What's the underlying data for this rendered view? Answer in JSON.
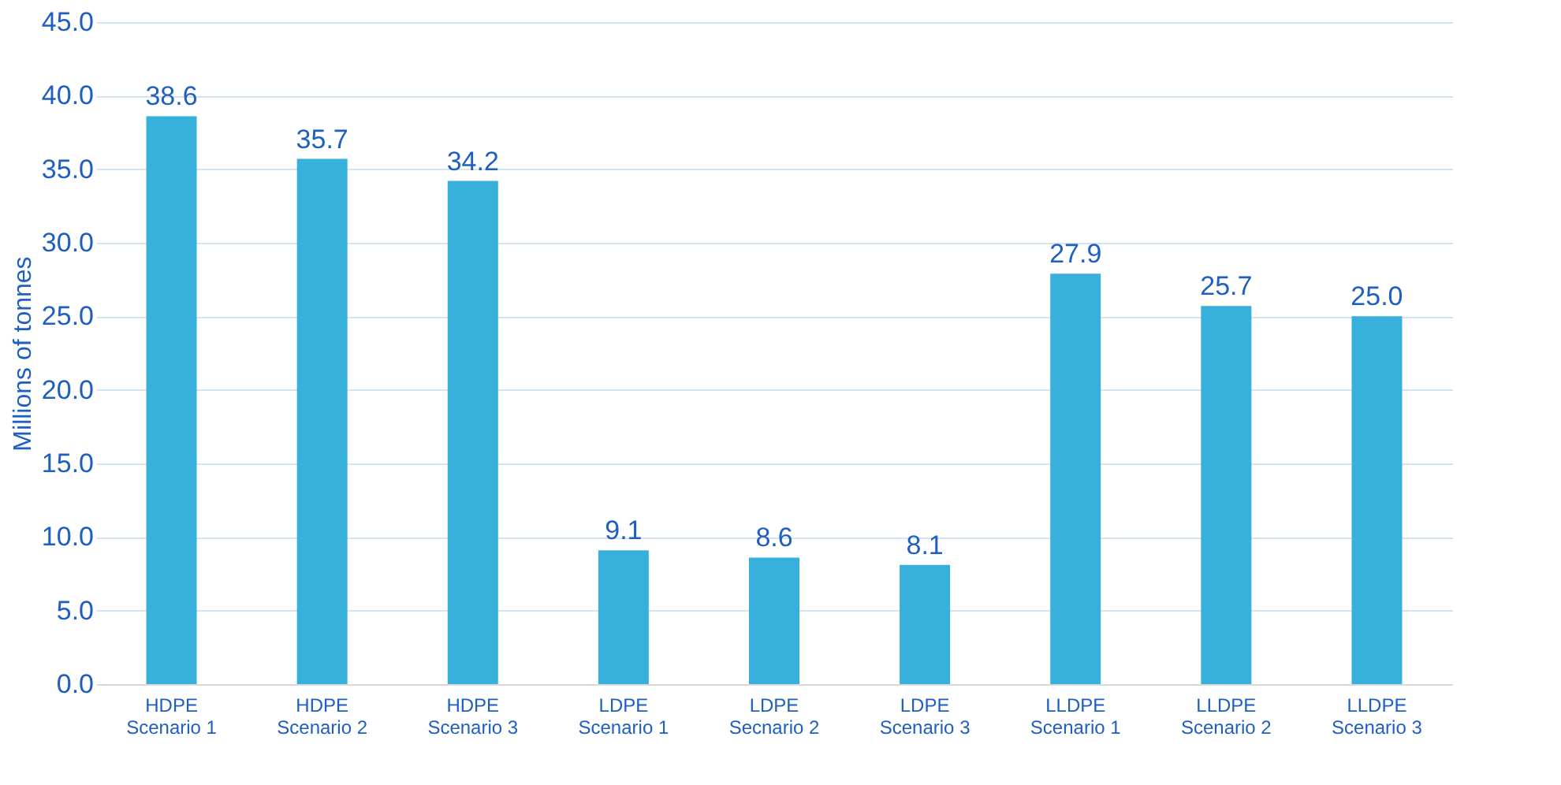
{
  "chart_data": {
    "type": "bar",
    "ylabel": "Millions of tonnes",
    "categories": [
      "HDPE\nScenario 1",
      "HDPE\nScenario 2",
      "HDPE\nScenario 3",
      "LDPE\nScenario 1",
      "LDPE\nSecnario 2",
      "LDPE\nScenario 3",
      "LLDPE\nScenario 1",
      "LLDPE\nScenario 2",
      "LLDPE\nScenario 3"
    ],
    "values": [
      38.6,
      35.7,
      34.2,
      9.1,
      8.6,
      8.1,
      27.9,
      25.7,
      25.0
    ],
    "value_labels": [
      "38.6",
      "35.7",
      "34.2",
      "9.1",
      "8.6",
      "8.1",
      "27.9",
      "25.7",
      "25.0"
    ],
    "color": "#38b0dc",
    "ylim": [
      0,
      45
    ],
    "yticks": [
      {
        "value": 0,
        "label": "0.0"
      },
      {
        "value": 5,
        "label": "5.0"
      },
      {
        "value": 10,
        "label": "10.0"
      },
      {
        "value": 15,
        "label": "15.0"
      },
      {
        "value": 20,
        "label": "20.0"
      },
      {
        "value": 25,
        "label": "25.0"
      },
      {
        "value": 30,
        "label": "30.0"
      },
      {
        "value": 35,
        "label": "35.0"
      },
      {
        "value": 40,
        "label": "40.0"
      },
      {
        "value": 45,
        "label": "45.0"
      }
    ],
    "grid": "y"
  }
}
